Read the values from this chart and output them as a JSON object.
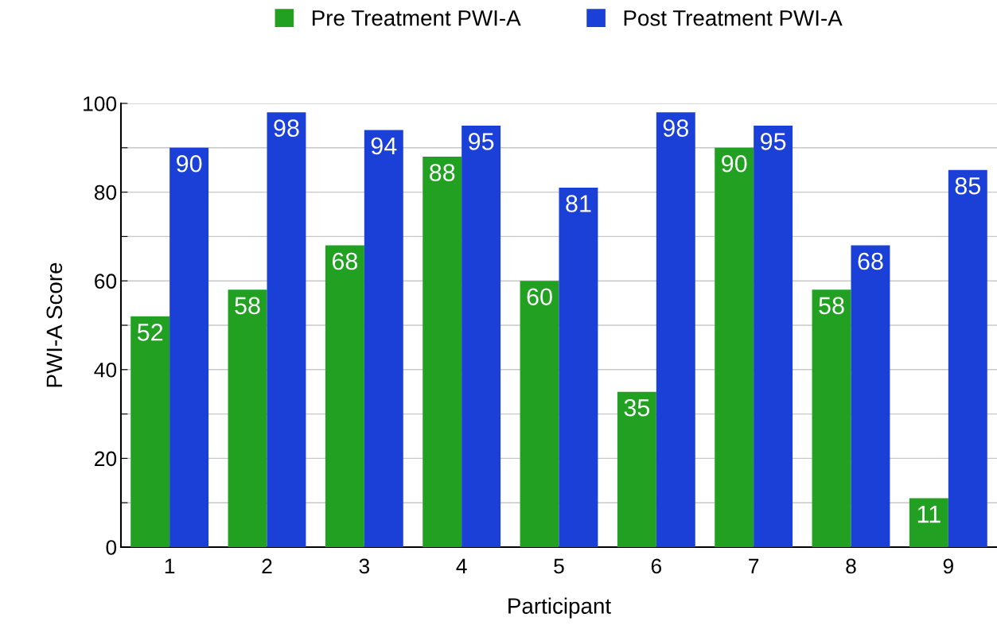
{
  "chart_data": {
    "type": "bar",
    "xlabel": "Participant",
    "ylabel": "PWI-A Score",
    "categories": [
      "1",
      "2",
      "3",
      "4",
      "5",
      "6",
      "7",
      "8",
      "9"
    ],
    "series": [
      {
        "name": "Pre Treatment PWI-A",
        "color": "#22a022",
        "values": [
          52,
          58,
          68,
          88,
          60,
          35,
          90,
          58,
          11
        ]
      },
      {
        "name": "Post Treatment PWI-A",
        "color": "#1a40d8",
        "values": [
          90,
          98,
          94,
          95,
          81,
          98,
          95,
          68,
          85
        ]
      }
    ],
    "ylim": [
      0,
      100
    ],
    "yticks": [
      0,
      {
        "value": 10,
        "label": null
      },
      20,
      {
        "value": 30,
        "label": null
      },
      40,
      {
        "value": 50,
        "label": null
      },
      60,
      {
        "value": 70,
        "label": null
      },
      80,
      {
        "value": 90,
        "label": null
      },
      100
    ],
    "grid": "y",
    "legend": "top",
    "data_labels": true
  }
}
